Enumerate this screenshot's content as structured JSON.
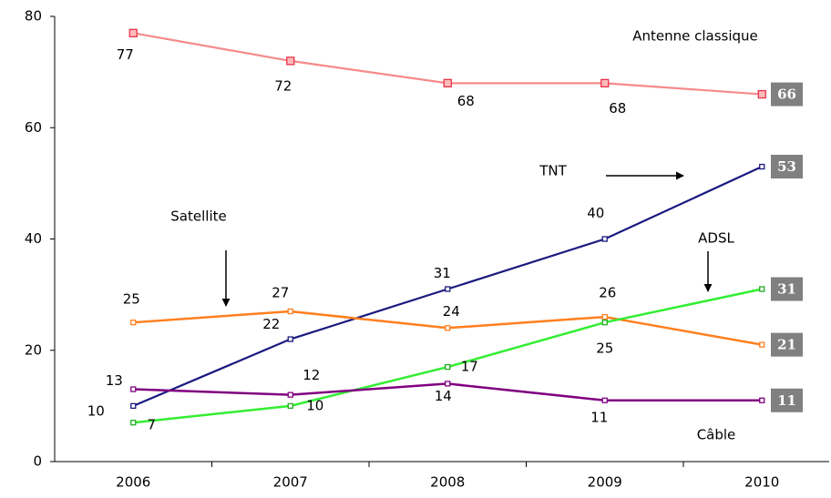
{
  "chart_data": {
    "type": "line",
    "categories": [
      "2006",
      "2007",
      "2008",
      "2009",
      "2010"
    ],
    "series": [
      {
        "name": "Antenne classique",
        "color": "#f58a8a",
        "marker": "#e8334a",
        "values": [
          77,
          72,
          68,
          68,
          66
        ]
      },
      {
        "name": "TNT",
        "color": "#1a1a80",
        "marker": "#1a1a80",
        "values": [
          10,
          22,
          31,
          40,
          53
        ]
      },
      {
        "name": "Satellite",
        "color": "#ff7f1e",
        "marker": "#ff7f1e",
        "values": [
          25,
          27,
          24,
          26,
          21
        ]
      },
      {
        "name": "ADSL",
        "color": "#33ee33",
        "marker": "#22aa22",
        "values": [
          7,
          10,
          17,
          25,
          31
        ]
      },
      {
        "name": "Câble",
        "color": "#800080",
        "marker": "#800080",
        "values": [
          13,
          12,
          14,
          11,
          11
        ]
      }
    ],
    "ylim": [
      0,
      80
    ],
    "yticks": [
      0,
      20,
      40,
      60,
      80
    ],
    "grid": false
  }
}
